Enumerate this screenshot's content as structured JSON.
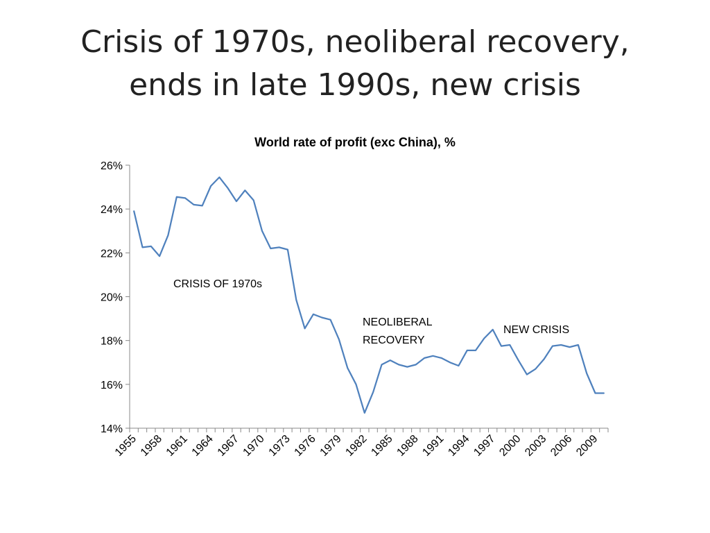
{
  "slide": {
    "title_line1": "Crisis of 1970s, neoliberal recovery,",
    "title_line2": "ends in late 1990s, new crisis"
  },
  "chart_data": {
    "type": "line",
    "title": "World rate of profit (exc China), %",
    "xlabel": "",
    "ylabel": "",
    "ylim": [
      14,
      26
    ],
    "y_ticks": [
      "14%",
      "16%",
      "18%",
      "20%",
      "22%",
      "24%",
      "26%"
    ],
    "x_tick_labels": [
      "1955",
      "1958",
      "1961",
      "1964",
      "1967",
      "1970",
      "1973",
      "1976",
      "1979",
      "1982",
      "1985",
      "1988",
      "1991",
      "1994",
      "1997",
      "2000",
      "2003",
      "2006",
      "2009"
    ],
    "grid": false,
    "legend": "none",
    "line_color": "#4F81BD",
    "series": [
      {
        "x": [
          1955,
          1956,
          1957,
          1958,
          1959,
          1960,
          1961,
          1962,
          1963,
          1964,
          1965,
          1966,
          1967,
          1968,
          1969,
          1970,
          1971,
          1972,
          1973,
          1974,
          1975,
          1976,
          1977,
          1978,
          1979,
          1980,
          1981,
          1982,
          1983,
          1984,
          1985,
          1986,
          1987,
          1988,
          1989,
          1990,
          1991,
          1992,
          1993,
          1994,
          1995,
          1996,
          1997,
          1998,
          1999,
          2000,
          2001,
          2002,
          2003,
          2004,
          2005,
          2006,
          2007,
          2008,
          2009,
          2010
        ],
        "values": [
          23.9,
          22.25,
          22.3,
          21.85,
          22.8,
          24.55,
          24.5,
          24.2,
          24.15,
          25.05,
          25.45,
          24.95,
          24.35,
          24.85,
          24.4,
          23.0,
          22.2,
          22.25,
          22.15,
          19.85,
          18.55,
          19.2,
          19.05,
          18.95,
          18.05,
          16.75,
          16.0,
          14.7,
          15.65,
          16.9,
          17.1,
          16.9,
          16.8,
          16.9,
          17.2,
          17.3,
          17.2,
          17.0,
          16.85,
          17.55,
          17.55,
          18.1,
          18.5,
          17.75,
          17.8,
          17.1,
          16.45,
          16.7,
          17.15,
          17.75,
          17.8,
          17.7,
          17.8,
          16.5,
          15.6,
          15.6
        ]
      }
    ],
    "annotations": [
      {
        "text": "CRISIS OF 1970s"
      },
      {
        "text": "NEOLIBERAL"
      },
      {
        "text": "RECOVERY"
      },
      {
        "text": "NEW CRISIS"
      }
    ]
  }
}
